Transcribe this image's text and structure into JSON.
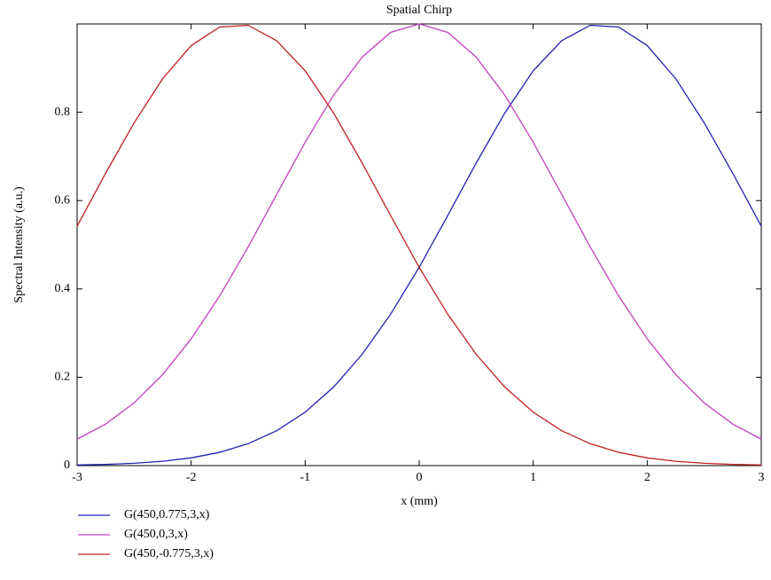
{
  "chart_data": {
    "type": "line",
    "title": "Spatial Chirp",
    "x_label": "x  (mm)",
    "y_label": "Spectral Intensity (a.u.)",
    "x": [
      -3,
      -2.75,
      -2.5,
      -2.25,
      -2,
      -1.75,
      -1.5,
      -1.25,
      -1,
      -0.75,
      -0.5,
      -0.25,
      0,
      0.25,
      0.5,
      0.75,
      1,
      1.25,
      1.5,
      1.75,
      2,
      2.25,
      2.5,
      2.75,
      3
    ],
    "series": [
      {
        "name": "G(450,0.775,3,x)",
        "color": "#2020b0",
        "values": [
          0.00134,
          0.0027,
          0.00523,
          0.00973,
          0.01742,
          0.03,
          0.0496,
          0.079,
          0.1209,
          0.178,
          0.252,
          0.343,
          0.449,
          0.566,
          0.685,
          0.798,
          0.894,
          0.962,
          0.997,
          0.993,
          0.951,
          0.876,
          0.776,
          0.662,
          0.542
        ]
      },
      {
        "name": "G(450,0,3,x)",
        "color": "#c040c0",
        "values": [
          0.06,
          0.094,
          0.142,
          0.206,
          0.287,
          0.384,
          0.495,
          0.614,
          0.732,
          0.839,
          0.925,
          0.981,
          1,
          0.981,
          0.925,
          0.839,
          0.732,
          0.614,
          0.495,
          0.384,
          0.287,
          0.206,
          0.142,
          0.094,
          0.06
        ]
      },
      {
        "name": "G(450,-0.775,3,x)",
        "color": "#c02020",
        "values": [
          0.542,
          0.662,
          0.776,
          0.876,
          0.951,
          0.993,
          0.997,
          0.962,
          0.894,
          0.798,
          0.685,
          0.566,
          0.449,
          0.343,
          0.252,
          0.178,
          0.1209,
          0.079,
          0.0496,
          0.03,
          0.01742,
          0.00973,
          0.00523,
          0.0027,
          0.00134
        ]
      }
    ],
    "xlim": [
      -3,
      3
    ],
    "xticks": [
      -3,
      -2,
      -1,
      0,
      1,
      2,
      3
    ],
    "ylim": [
      0,
      1
    ],
    "yticks": [
      0,
      0.2,
      0.4,
      0.6,
      0.8
    ],
    "grid": false,
    "legend": "bottom-left"
  }
}
